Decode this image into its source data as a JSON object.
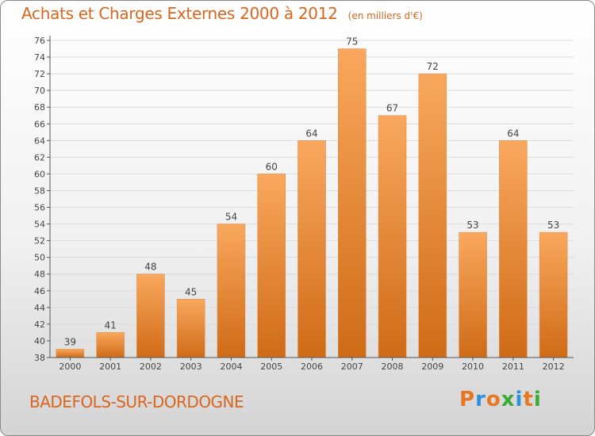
{
  "title": "Achats et Charges Externes 2000 à 2012",
  "subtitle": "(en milliers d'€)",
  "location": "BADEFOLS-SUR-DORDOGNE",
  "brand": {
    "text": "Proxiti",
    "letter_colors": [
      "#e8771f",
      "#2f8fd8",
      "#e8771f",
      "#3aa935",
      "#2f8fd8",
      "#e8771f",
      "#3aa935"
    ]
  },
  "colors": {
    "title": "#d9661e",
    "bar_light": "#f9a85e",
    "bar_dark": "#cf6b17",
    "grid": "#dcdcdc"
  },
  "chart_data": {
    "type": "bar",
    "categories": [
      "2000",
      "2001",
      "2002",
      "2003",
      "2004",
      "2005",
      "2006",
      "2007",
      "2008",
      "2009",
      "2010",
      "2011",
      "2012"
    ],
    "values": [
      39,
      41,
      48,
      45,
      54,
      60,
      64,
      75,
      67,
      72,
      53,
      64,
      53
    ],
    "ylim": [
      38,
      76
    ],
    "yticks": [
      38,
      40,
      42,
      44,
      46,
      48,
      50,
      52,
      54,
      56,
      58,
      60,
      62,
      64,
      66,
      68,
      70,
      72,
      74,
      76
    ],
    "grid": true,
    "data_labels": true
  }
}
